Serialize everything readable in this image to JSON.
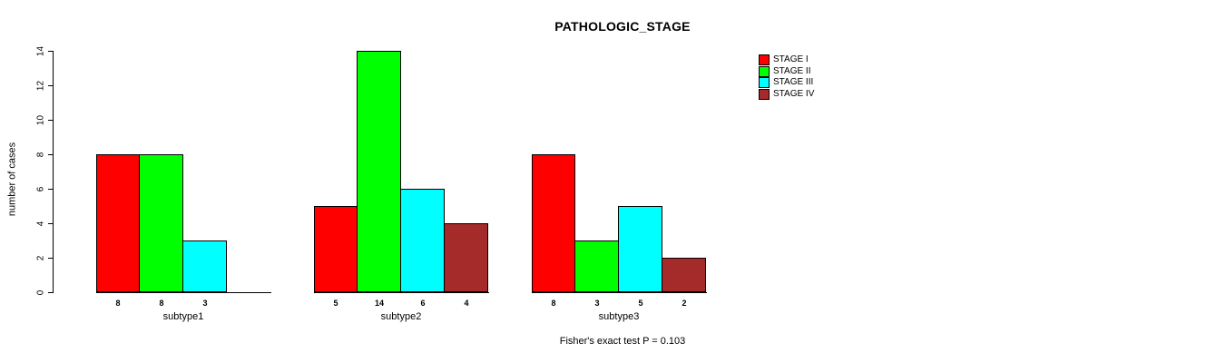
{
  "title": "PATHOLOGIC_STAGE",
  "footer": "Fisher's exact test P = 0.103",
  "y_axis": {
    "label": "number of cases"
  },
  "chart_data": {
    "type": "bar",
    "title": "PATHOLOGIC_STAGE",
    "categories": [
      "subtype1",
      "subtype2",
      "subtype3"
    ],
    "series": [
      {
        "name": "STAGE I",
        "color": "#ff0000",
        "values": [
          8,
          5,
          8
        ]
      },
      {
        "name": "STAGE II",
        "color": "#00ff00",
        "values": [
          8,
          14,
          3
        ]
      },
      {
        "name": "STAGE III",
        "color": "#00ffff",
        "values": [
          3,
          6,
          5
        ]
      },
      {
        "name": "STAGE IV",
        "color": "#a52a2a",
        "values": [
          0,
          4,
          2
        ]
      }
    ],
    "xlabel": "",
    "ylabel": "number of cases",
    "ylim": [
      0,
      14
    ],
    "yticks": [
      0,
      2,
      4,
      6,
      8,
      10,
      12,
      14
    ],
    "bar_value_labels": true,
    "value_labels_note": "zero values draw no bar and no label",
    "grid": false,
    "legend_position": "top-right",
    "annotation": "Fisher's exact test P = 0.103"
  }
}
